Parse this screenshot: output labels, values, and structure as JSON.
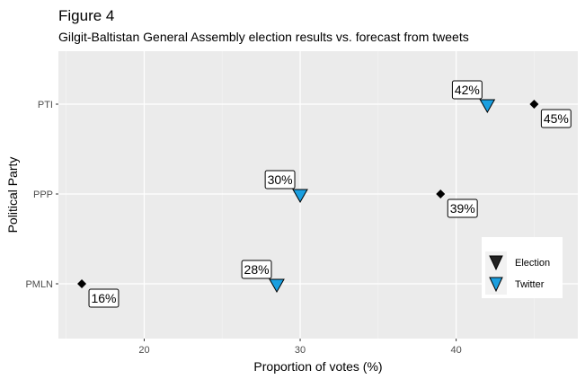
{
  "chart_data": {
    "type": "scatter",
    "title": "Figure 4",
    "subtitle": "Gilgit-Baltistan General Assembly election results vs. forecast from tweets",
    "xlabel": "Proportion of votes (%)",
    "ylabel": "Political Party",
    "xlim": [
      14.5,
      47.8
    ],
    "xticks": [
      20,
      30,
      40
    ],
    "categories": [
      "PMLN",
      "PPP",
      "PTI"
    ],
    "grid": true,
    "legend_position": "right",
    "series": [
      {
        "name": "Election",
        "marker": "diamond",
        "color": "#000000",
        "points": [
          {
            "category": "PTI",
            "x": 45,
            "label": "45%"
          },
          {
            "category": "PPP",
            "x": 39,
            "label": "39%"
          },
          {
            "category": "PMLN",
            "x": 16,
            "label": "16%"
          }
        ]
      },
      {
        "name": "Twitter",
        "marker": "triangle-down",
        "color": "#1a9fe0",
        "points": [
          {
            "category": "PTI",
            "x": 42,
            "label": "42%"
          },
          {
            "category": "PPP",
            "x": 30,
            "label": "30%"
          },
          {
            "category": "PMLN",
            "x": 28.5,
            "label": "28%"
          }
        ]
      }
    ],
    "colors": {
      "panel": "#ebebeb",
      "grid": "#ffffff",
      "election": "#000000",
      "twitter": "#1a9fe0"
    }
  }
}
